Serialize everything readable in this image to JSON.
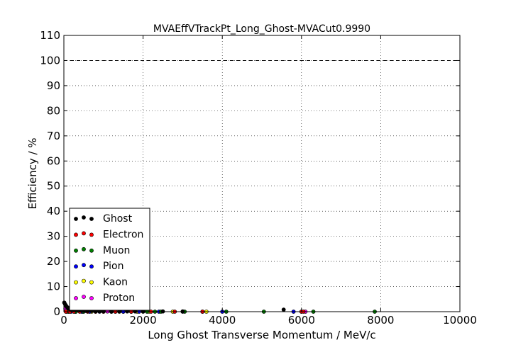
{
  "chart_data": {
    "type": "scatter",
    "title": "MVAEffVTrackPt_Long_Ghost-MVACut0.9990",
    "xlabel": "Long Ghost Transverse Momentum / MeV/c",
    "ylabel": "Efficiency / %",
    "xlim": [
      0,
      10000
    ],
    "ylim": [
      0,
      110
    ],
    "xticks": [
      "0",
      "2000",
      "4000",
      "6000",
      "8000",
      "10000"
    ],
    "yticks": [
      "0",
      "10",
      "20",
      "30",
      "40",
      "50",
      "60",
      "70",
      "80",
      "90",
      "100",
      "110"
    ],
    "grid": true,
    "reference_line": {
      "y": 100,
      "style": "dashed"
    },
    "legend_position": "lower-left",
    "series": [
      {
        "name": "Ghost",
        "color": "#000000",
        "x": [
          10,
          30,
          50,
          70,
          90,
          110,
          130,
          160,
          200,
          250,
          300,
          350,
          400,
          450,
          500,
          600,
          700,
          800,
          900,
          1000,
          1200,
          1400,
          1600,
          1800,
          2000,
          2500,
          3000,
          5550
        ],
        "y": [
          3.6,
          3.0,
          2.5,
          2.0,
          1.7,
          1.4,
          1.2,
          1.0,
          0.9,
          0.8,
          0.7,
          0.6,
          0.5,
          0.5,
          0.4,
          0.3,
          0.3,
          0.2,
          0.2,
          0.2,
          0.1,
          0.1,
          0.1,
          0.1,
          0.1,
          0.1,
          0.1,
          0.8
        ]
      },
      {
        "name": "Electron",
        "color": "#ff0000",
        "x": [
          50,
          150,
          250,
          400,
          600,
          800,
          1000,
          1300,
          1700,
          2200,
          2800,
          3500,
          6000,
          6050
        ],
        "y": [
          0,
          0,
          0,
          0,
          0,
          0,
          0,
          0,
          0,
          0,
          0,
          0,
          0,
          0
        ]
      },
      {
        "name": "Muon",
        "color": "#008000",
        "x": [
          100,
          300,
          500,
          800,
          1200,
          1700,
          2000,
          2100,
          2300,
          2450,
          3050,
          3500,
          4100,
          5050,
          6300,
          7850
        ],
        "y": [
          0,
          0,
          0,
          0,
          0,
          0,
          0,
          0,
          0,
          0,
          0,
          0,
          0,
          0,
          0,
          0
        ]
      },
      {
        "name": "Pion",
        "color": "#0000ff",
        "x": [
          60,
          180,
          300,
          450,
          650,
          900,
          1200,
          1500,
          1900,
          2400,
          3000,
          4000,
          5800
        ],
        "y": [
          0,
          0,
          0,
          0,
          0,
          0,
          0,
          0,
          0,
          0,
          0,
          0,
          0
        ]
      },
      {
        "name": "Kaon",
        "color": "#ffff00",
        "x": [
          120,
          280,
          480,
          700,
          1000,
          1400,
          1850,
          2150,
          2750,
          3600
        ],
        "y": [
          0,
          0,
          0,
          0,
          0,
          0,
          0,
          0,
          0,
          0
        ]
      },
      {
        "name": "Proton",
        "color": "#ff00ff",
        "x": [
          40,
          80,
          120,
          160,
          200,
          240,
          280,
          320,
          360,
          400,
          450,
          500,
          550,
          600,
          700,
          800,
          900,
          1000,
          1100,
          1300,
          1500,
          1700,
          6000,
          6100
        ],
        "y": [
          1.2,
          1.1,
          1.0,
          0.9,
          0.9,
          0.8,
          0.8,
          0.7,
          0.6,
          0.5,
          0.4,
          0.3,
          0.3,
          0.2,
          0.2,
          0.1,
          0.1,
          0.1,
          0.1,
          0,
          0,
          0,
          0,
          0
        ]
      }
    ]
  }
}
